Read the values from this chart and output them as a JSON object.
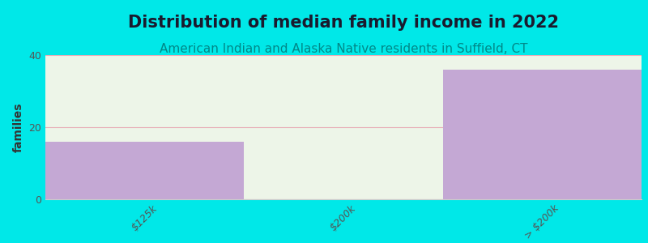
{
  "title": "Distribution of median family income in 2022",
  "subtitle": "American Indian and Alaska Native residents in Suffield, CT",
  "categories": [
    "$125k",
    "$200k",
    "> $200k"
  ],
  "values": [
    16,
    0,
    36
  ],
  "bar_color": "#c4a8d4",
  "background_color": "#00e8e8",
  "plot_bg_color": "#edf5e8",
  "ylabel": "families",
  "ylim": [
    0,
    40
  ],
  "yticks": [
    0,
    20,
    40
  ],
  "title_fontsize": 15,
  "subtitle_fontsize": 11,
  "title_color": "#1a1a2e",
  "subtitle_color": "#008888",
  "grid_color": "#e8b0b8",
  "bar_width": 1.0
}
